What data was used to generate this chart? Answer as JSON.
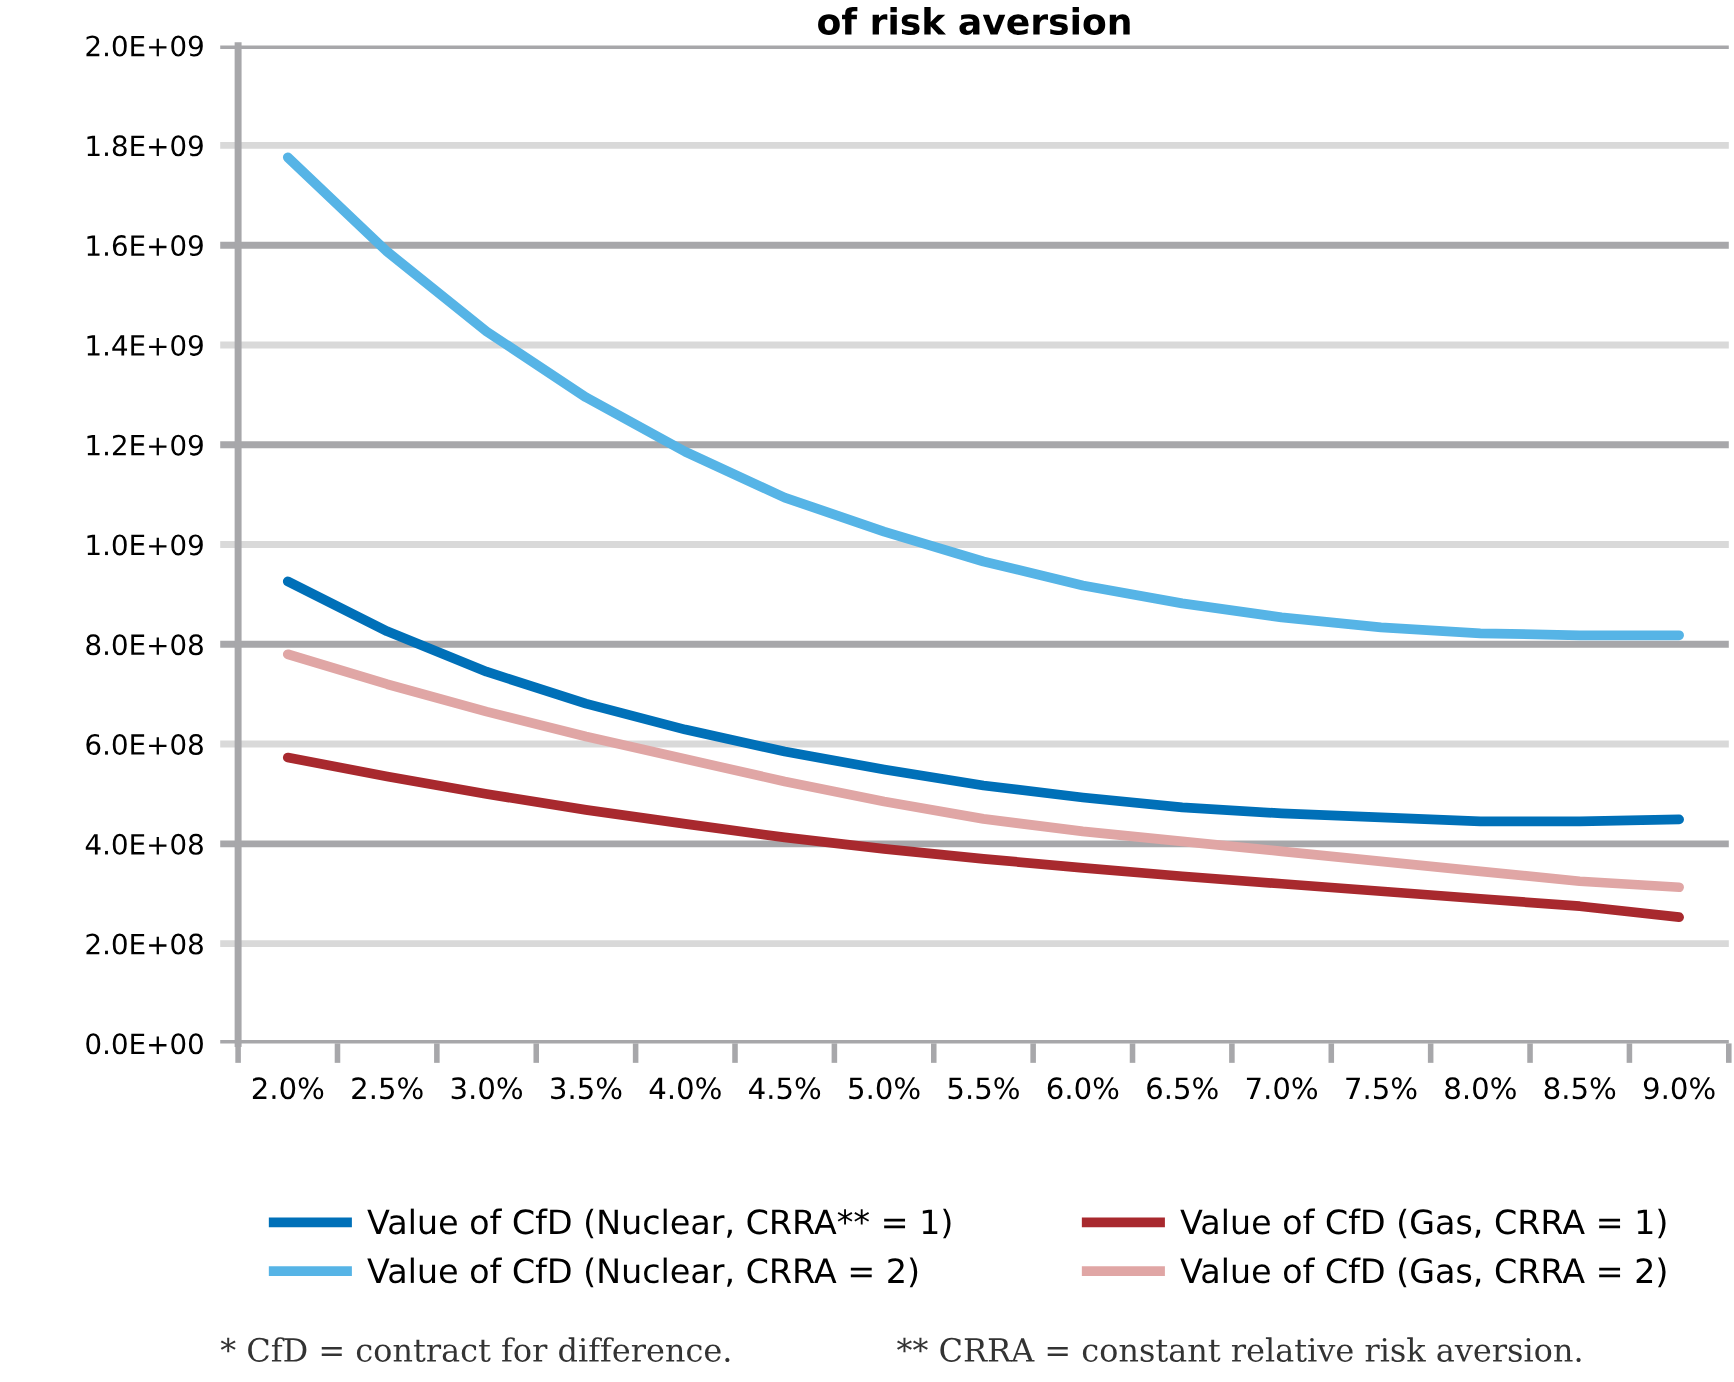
{
  "chart_data": {
    "type": "line",
    "title": "of risk aversion",
    "categories": [
      "2.0%",
      "2.5%",
      "3.0%",
      "3.5%",
      "4.0%",
      "4.5%",
      "5.0%",
      "5.5%",
      "6.0%",
      "6.5%",
      "7.0%",
      "7.5%",
      "8.0%",
      "8.5%",
      "9.0%"
    ],
    "series": [
      {
        "name": "Value of CfD (Nuclear, CRRA** = 1)",
        "color": "#0070b8",
        "values": [
          926000000,
          826000000,
          745000000,
          681000000,
          629000000,
          585000000,
          549000000,
          517000000,
          493000000,
          473000000,
          461000000,
          453000000,
          445000000,
          445000000,
          449000000
        ]
      },
      {
        "name": "Value of CfD (Nuclear, CRRA = 2)",
        "color": "#56b4e6",
        "values": [
          1776000000,
          1587000000,
          1427000000,
          1295000000,
          1186000000,
          1094000000,
          1026000000,
          966000000,
          918000000,
          882000000,
          854000000,
          834000000,
          822000000,
          818000000,
          818000000
        ]
      },
      {
        "name": "Value of CfD (Gas, CRRA = 1)",
        "color": "#a8292e",
        "values": [
          573000000,
          535000000,
          500000000,
          468000000,
          440000000,
          413000000,
          390000000,
          370000000,
          352000000,
          335000000,
          320000000,
          305000000,
          290000000,
          275000000,
          253000000
        ]
      },
      {
        "name": "Value of CfD (Gas, CRRA = 2)",
        "color": "#e0a6a5",
        "values": [
          780000000,
          720000000,
          665000000,
          615000000,
          570000000,
          525000000,
          485000000,
          450000000,
          425000000,
          405000000,
          385000000,
          365000000,
          345000000,
          325000000,
          313000000
        ]
      }
    ],
    "ylim": [
      0,
      2000000000
    ],
    "yticks": [
      {
        "value": 0,
        "label": "0.0E+00"
      },
      {
        "value": 200000000,
        "label": "2.0E+08"
      },
      {
        "value": 400000000,
        "label": "4.0E+08"
      },
      {
        "value": 600000000,
        "label": "6.0E+08"
      },
      {
        "value": 800000000,
        "label": "8.0E+08"
      },
      {
        "value": 1000000000,
        "label": "1.0E+09"
      },
      {
        "value": 1200000000,
        "label": "1.2E+09"
      },
      {
        "value": 1400000000,
        "label": "1.4E+09"
      },
      {
        "value": 1600000000,
        "label": "1.6E+09"
      },
      {
        "value": 1800000000,
        "label": "1.8E+09"
      },
      {
        "value": 2000000000,
        "label": "2.0E+09"
      }
    ],
    "grid": "y",
    "legend": "bottom",
    "marker": "none",
    "line_style": "solid",
    "annotations": [
      "* CfD = contract for difference.",
      "** CRRA = constant relative risk aversion."
    ]
  }
}
